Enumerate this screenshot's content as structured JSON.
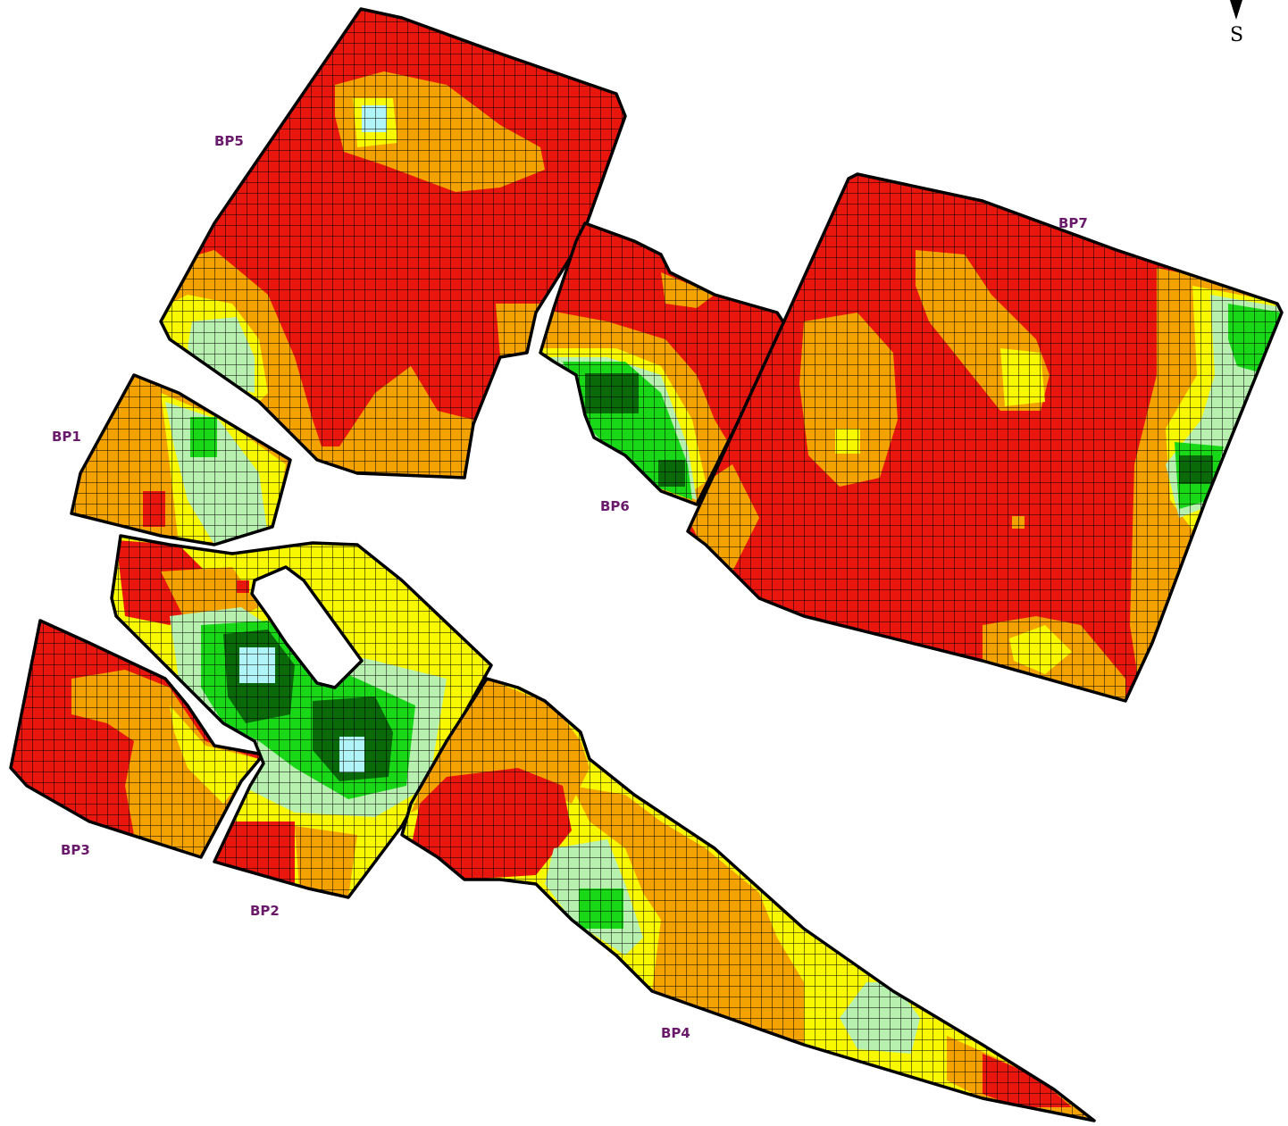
{
  "legend_colors": {
    "class_1": "#e8160c",
    "class_2": "#f4a200",
    "class_3": "#f8f800",
    "class_4": "#b8f0b0",
    "class_5": "#18d818",
    "class_6": "#0a6a0a",
    "class_7": "#b0f4f8"
  },
  "compass": {
    "letter": "S",
    "icon": "north-arrow-icon"
  },
  "fields": [
    {
      "id": "BP1",
      "label": "BP1"
    },
    {
      "id": "BP2",
      "label": "BP2"
    },
    {
      "id": "BP3",
      "label": "BP3"
    },
    {
      "id": "BP4",
      "label": "BP4"
    },
    {
      "id": "BP5",
      "label": "BP5"
    },
    {
      "id": "BP6",
      "label": "BP6"
    },
    {
      "id": "BP7",
      "label": "BP7"
    }
  ]
}
